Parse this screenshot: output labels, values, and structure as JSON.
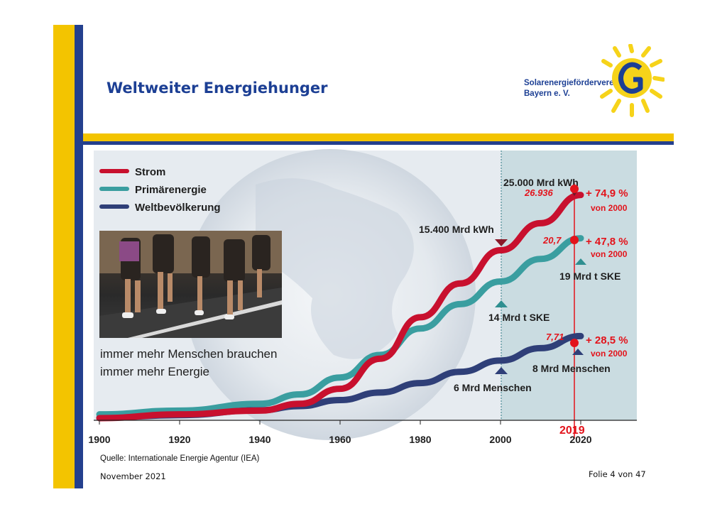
{
  "header": {
    "title": "Weltweiter Energiehunger",
    "org_line1": "Solarenergieförderverein",
    "org_line2": "Bayern e. V."
  },
  "legend": [
    "Strom",
    "Primärenergie",
    "Weltbevölkerung"
  ],
  "caption": {
    "line1": "immer mehr Menschen brauchen",
    "line2": "immer mehr Energie"
  },
  "annotations": {
    "strom_2000": "15.400 Mrd kWh",
    "strom_2020": "25.000 Mrd kWh",
    "strom_2019_value": "26.936",
    "strom_change": "+ 74,9 %",
    "primaer_2000": "14 Mrd t SKE",
    "primaer_2020": "19 Mrd t SKE",
    "primaer_2019_value": "20,7",
    "primaer_change": "+ 47,8 %",
    "bev_2000": "6 Mrd Menschen",
    "bev_2020": "8 Mrd Menschen",
    "bev_2019_value": "7,71",
    "bev_change": "+ 28,5 %",
    "since": "von 2000",
    "marker_year": "2019"
  },
  "footer": {
    "source": "Quelle: Internationale Energie Agentur (IEA)",
    "date": "November 2021",
    "slide": "Folie 4 von 47"
  },
  "colors": {
    "strom": "#c8102e",
    "primaer": "#3a9ea0",
    "bev": "#2f3f78",
    "highlight": "#e3131b",
    "brand_blue": "#1c3f94",
    "brand_yellow": "#f3c400"
  },
  "chart_data": {
    "type": "line",
    "x_ticks": [
      "1900",
      "1920",
      "1940",
      "1960",
      "1980",
      "2000",
      "2020"
    ],
    "xlim": [
      1900,
      2035
    ],
    "series": [
      {
        "name": "Strom",
        "x": [
          1900,
          1920,
          1940,
          1950,
          1960,
          1970,
          1980,
          1990,
          2000,
          2010,
          2020
        ],
        "y": [
          0.2,
          1.2,
          2.2,
          4.0,
          8.0,
          16.0,
          27.0,
          36.0,
          44.8,
          52.0,
          59.5
        ]
      },
      {
        "name": "Primärenergie",
        "x": [
          1900,
          1920,
          1940,
          1950,
          1960,
          1970,
          1980,
          1990,
          2000,
          2010,
          2020
        ],
        "y": [
          1.2,
          2.2,
          4.0,
          6.5,
          11.0,
          17.0,
          24.0,
          30.5,
          36.5,
          42.5,
          48.0
        ]
      },
      {
        "name": "Weltbevölkerung",
        "x": [
          1900,
          1920,
          1940,
          1950,
          1960,
          1970,
          1980,
          1990,
          2000,
          2010,
          2020
        ],
        "y": [
          0.3,
          1.0,
          2.3,
          3.4,
          5.0,
          7.0,
          9.5,
          12.5,
          15.5,
          18.8,
          22.0
        ]
      }
    ]
  }
}
